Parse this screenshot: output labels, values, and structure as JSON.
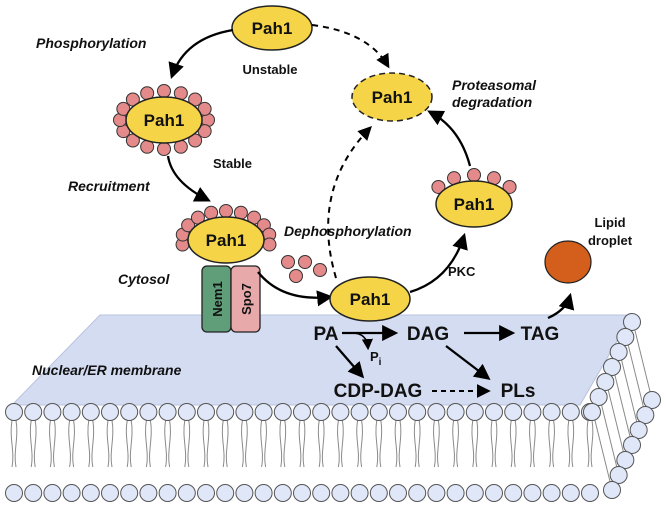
{
  "colors": {
    "pah1_fill": "#f5d547",
    "phospho_dot": "#e48a8a",
    "membrane_fill": "#d4dcf2",
    "lipid_head": "#dfe7f8",
    "nem1": "#5f9e78",
    "spo7": "#e7a9a9",
    "lipid_droplet": "#d45f1c"
  },
  "labels": {
    "phosphorylation": "Phosphorylation",
    "unstable": "Unstable",
    "stable": "Stable",
    "recruitment": "Recruitment",
    "cytosol": "Cytosol",
    "dephosphorylation": "Dephosphorylation",
    "proteasomal_degradation_1": "Proteasomal",
    "proteasomal_degradation_2": "degradation",
    "pkc": "PKC",
    "lipid_droplet_1": "Lipid",
    "lipid_droplet_2": "droplet",
    "membrane": "Nuclear/ER membrane"
  },
  "proteins": {
    "pah1": "Pah1",
    "nem1": "Nem1",
    "spo7": "Spo7"
  },
  "metabolites": {
    "pa": "PA",
    "dag": "DAG",
    "tag": "TAG",
    "pi": "P",
    "pi_sub": "i",
    "cdp_dag": "CDP-DAG",
    "pls": "PLs"
  }
}
